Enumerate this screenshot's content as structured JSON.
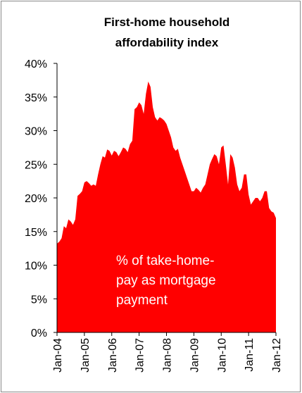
{
  "chart_data": {
    "type": "area",
    "title": [
      "First-home household",
      "affordability index"
    ],
    "annotation": [
      "% of take-home-",
      "pay as mortgage",
      "payment"
    ],
    "color": "#ff0000",
    "categories": [
      "Jan-04",
      null,
      null,
      null,
      null,
      null,
      null,
      null,
      null,
      null,
      null,
      null,
      "Jan-05",
      null,
      null,
      null,
      null,
      null,
      null,
      null,
      null,
      null,
      null,
      null,
      "Jan-06",
      null,
      null,
      null,
      null,
      null,
      null,
      null,
      null,
      null,
      null,
      null,
      "Jan-07",
      null,
      null,
      null,
      null,
      null,
      null,
      null,
      null,
      null,
      null,
      null,
      "Jan-08",
      null,
      null,
      null,
      null,
      null,
      null,
      null,
      null,
      null,
      null,
      null,
      "Jan-09",
      null,
      null,
      null,
      null,
      null,
      null,
      null,
      null,
      null,
      null,
      null,
      "Jan-10",
      null,
      null,
      null,
      null,
      null,
      null,
      null,
      null,
      null,
      null,
      null,
      "Jan-11",
      null,
      null,
      null,
      null,
      null,
      null,
      null,
      null,
      null,
      null,
      null,
      "Jan-12"
    ],
    "values": [
      13.2,
      13.5,
      14,
      15.8,
      15.5,
      16.8,
      16.5,
      16,
      16.8,
      20.3,
      20.6,
      21,
      22.3,
      22.5,
      22.2,
      21.8,
      22,
      21.8,
      23.5,
      25,
      26.2,
      26,
      27.2,
      27,
      26.3,
      27,
      26.8,
      26.2,
      26.8,
      27.5,
      27.3,
      26.8,
      28,
      28.5,
      33.2,
      33.5,
      34.2,
      33.8,
      32.5,
      35.5,
      37.3,
      36.5,
      33.5,
      32,
      31.5,
      32,
      31.8,
      31.5,
      31,
      30,
      29,
      27.5,
      27,
      27.3,
      26,
      25,
      24,
      23,
      22,
      21,
      21,
      21.5,
      21.2,
      20.8,
      21.5,
      22,
      23.5,
      25,
      25.8,
      26.5,
      26.2,
      25,
      27.5,
      27.8,
      25,
      22,
      26.5,
      26,
      24.5,
      22,
      21,
      21.5,
      23.5,
      23.5,
      20.5,
      19,
      19.5,
      20,
      20,
      19.5,
      20,
      21,
      21,
      18.5,
      18,
      17.8,
      17
    ],
    "ylim": [
      0,
      40
    ],
    "yticks": [
      {
        "value": 0,
        "label": "0%"
      },
      {
        "value": 5,
        "label": "5%"
      },
      {
        "value": 10,
        "label": "10%"
      },
      {
        "value": 15,
        "label": "15%"
      },
      {
        "value": 20,
        "label": "20%"
      },
      {
        "value": 25,
        "label": "25%"
      },
      {
        "value": 30,
        "label": "30%"
      },
      {
        "value": 35,
        "label": "35%"
      },
      {
        "value": 40,
        "label": "40%"
      }
    ],
    "grid": false
  }
}
